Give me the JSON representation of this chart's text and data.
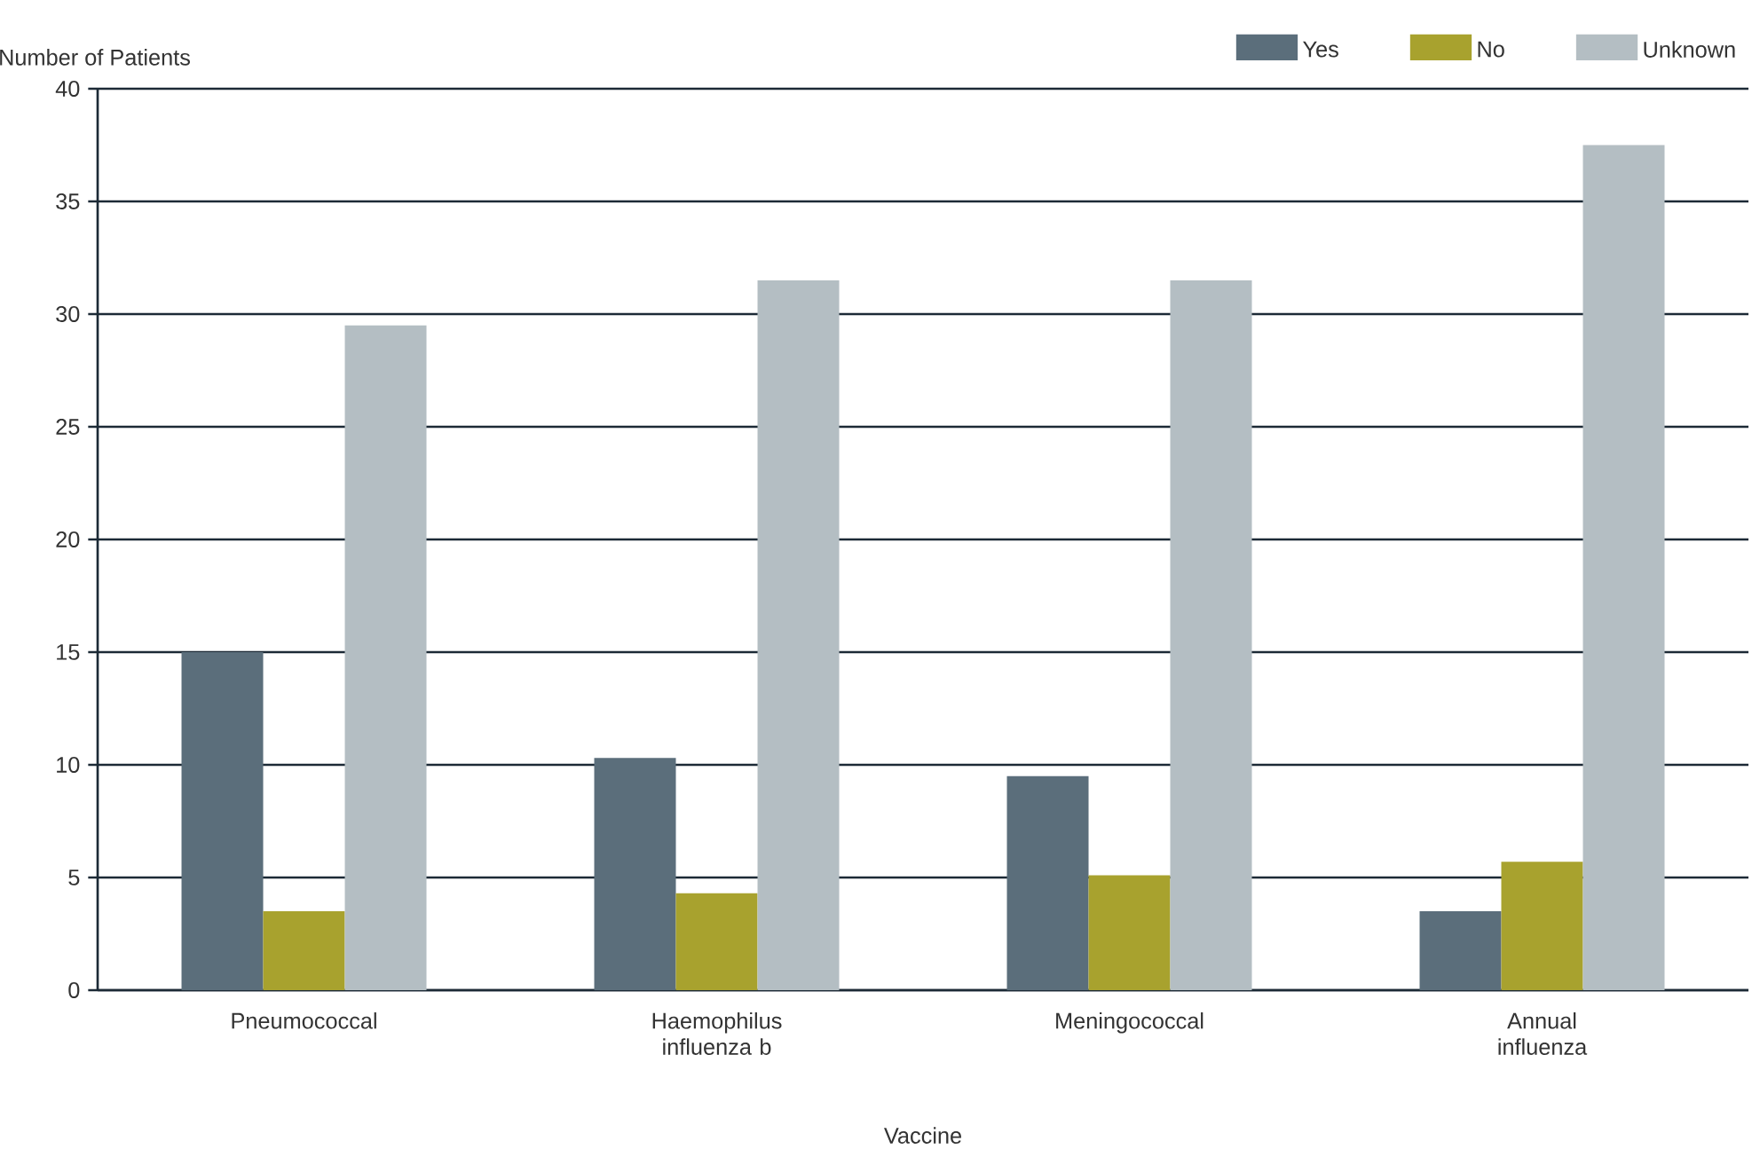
{
  "chart_data": {
    "type": "bar",
    "xlabel": "Vaccine",
    "ylabel": "Number of Patients",
    "categories": [
      "Pneumococcal",
      "Haemophilus influenza b",
      "Meningococcal",
      "Annual influenza"
    ],
    "series": [
      {
        "name": "Yes",
        "color": "#5b6e7b",
        "values": [
          15,
          10.3,
          9.5,
          3.5
        ]
      },
      {
        "name": "No",
        "color": "#a8a22e",
        "values": [
          3.5,
          4.3,
          5.1,
          5.7
        ]
      },
      {
        "name": "Unknown",
        "color": "#b4bec3",
        "values": [
          29.5,
          31.5,
          31.5,
          37.5
        ]
      }
    ],
    "ylim": [
      0,
      40
    ],
    "yticks": [
      0,
      5,
      10,
      15,
      20,
      25,
      30,
      35,
      40
    ],
    "grid": "y",
    "legend": "top right"
  }
}
